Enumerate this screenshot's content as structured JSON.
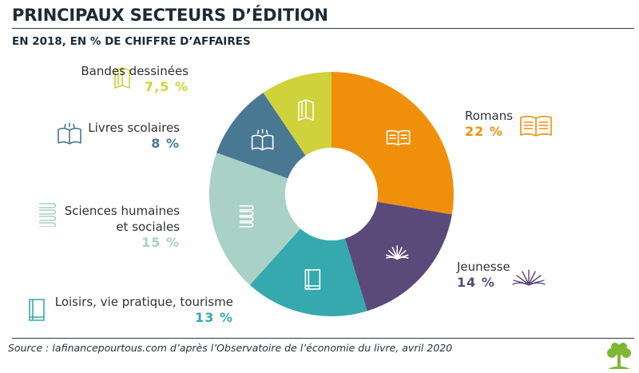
{
  "header": {
    "title": "PRINCIPAUX SECTEURS D’ÉDITION",
    "subtitle": "EN 2018, EN % DE CHIFFRE D’AFFAIRES"
  },
  "chart_data": {
    "type": "pie",
    "variant": "donut",
    "title": "PRINCIPAUX SECTEURS D’ÉDITION",
    "subtitle": "EN 2018, EN % DE CHIFFRE D’AFFAIRES",
    "unit": "%",
    "slices": [
      {
        "key": "romans",
        "label": "Romans",
        "value": 22,
        "value_label": "22 %",
        "color": "#f0900a",
        "icon": "open-book-icon"
      },
      {
        "key": "jeunesse",
        "label": "Jeunesse",
        "value": 14,
        "value_label": "14 %",
        "color": "#5a4a7a",
        "icon": "pop-up-book-icon"
      },
      {
        "key": "loisirs",
        "label": "Loisirs, vie pratique, tourisme",
        "value": 13,
        "value_label": "13 %",
        "color": "#35a9ad",
        "icon": "closed-book-icon"
      },
      {
        "key": "sciences",
        "label": "Sciences humaines et sociales",
        "label_lines": [
          "Sciences humaines",
          "et sociales"
        ],
        "value": 15,
        "value_label": "15 %",
        "color": "#a9d1c5",
        "icon": "stacked-books-icon"
      },
      {
        "key": "scolaires",
        "label": "Livres scolaires",
        "value": 8,
        "value_label": "8 %",
        "color": "#497893",
        "icon": "reading-book-icon"
      },
      {
        "key": "bd",
        "label": "Bandes dessinées",
        "value": 7.5,
        "value_label": "7,5 %",
        "color": "#cfd23a",
        "icon": "comic-album-icon"
      }
    ]
  },
  "footer": {
    "source": "Source : lafinancepourtous.com d’après l’Observatoire de l’économie du livre, avril 2020",
    "logo": "tree-logo-icon",
    "logo_color": "#7fb833"
  }
}
